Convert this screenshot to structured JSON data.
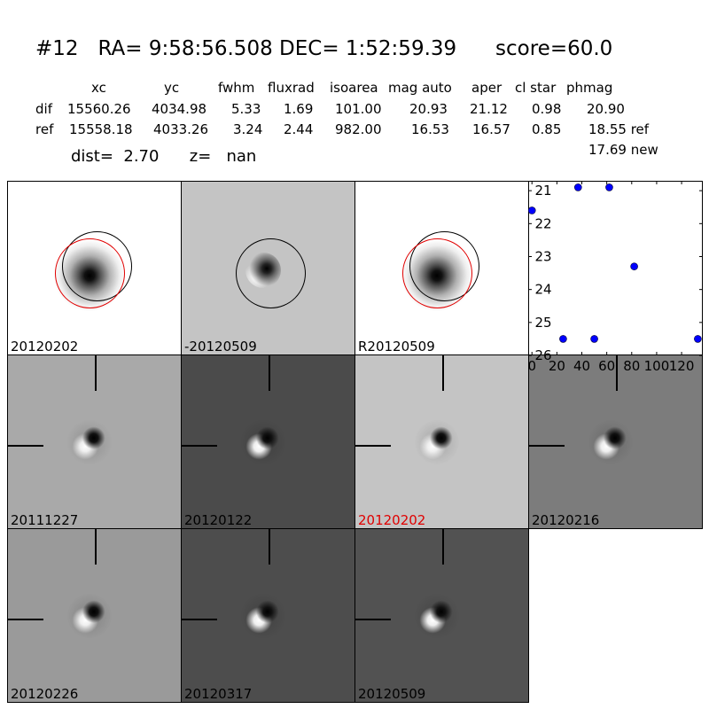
{
  "header": {
    "title": "#12   RA= 9:58:56.508 DEC= 1:52:59.39      score=60.0",
    "columns": [
      "xc",
      "yc",
      "fwhm",
      "fluxrad",
      "isoarea",
      "mag auto",
      "aper",
      "cl star",
      "phmag"
    ],
    "rows": [
      {
        "label": "dif",
        "values": [
          "15560.26",
          "4034.98",
          "5.33",
          "1.69",
          "101.00",
          "20.93",
          "21.12",
          "0.98",
          "20.90"
        ]
      },
      {
        "label": "ref",
        "values": [
          "15558.18",
          "4033.26",
          "3.24",
          "2.44",
          "982.00",
          "16.53",
          "16.57",
          "0.85",
          "18.55 ref"
        ]
      }
    ],
    "extra_phmag": "17.69 new",
    "dist_text": "dist=  2.70      z=   nan"
  },
  "panels": [
    {
      "label": "20120202",
      "type": "ref",
      "bg": "#ffffff",
      "red": false
    },
    {
      "label": "-20120509",
      "type": "diff-circle",
      "bg": "#c4c4c4",
      "red": false
    },
    {
      "label": "R20120509",
      "type": "ref",
      "bg": "#ffffff",
      "red": false
    },
    {
      "label": "20111227",
      "type": "cutout",
      "bg": "#a9a9a9",
      "red": false
    },
    {
      "label": "20120122",
      "type": "cutout",
      "bg": "#4b4b4b",
      "red": false
    },
    {
      "label": "20120202",
      "type": "cutout",
      "bg": "#c4c4c4",
      "red": true
    },
    {
      "label": "20120216",
      "type": "cutout",
      "bg": "#7c7c7c",
      "red": false
    },
    {
      "label": "20120226",
      "type": "cutout",
      "bg": "#9a9a9a",
      "red": false
    },
    {
      "label": "20120317",
      "type": "cutout",
      "bg": "#4d4d4d",
      "red": false
    },
    {
      "label": "20120509",
      "type": "cutout",
      "bg": "#525252",
      "red": false
    }
  ],
  "chart_data": {
    "type": "scatter",
    "x": [
      0,
      25,
      37,
      50,
      62,
      82,
      133
    ],
    "y": [
      21.6,
      25.5,
      20.9,
      25.5,
      20.9,
      23.3,
      25.5
    ],
    "xlim": [
      -3,
      137
    ],
    "ylim": [
      26,
      20.7
    ],
    "xticks": [
      "0",
      "20",
      "40",
      "60",
      "80",
      "100",
      "120"
    ],
    "yticks": [
      "21",
      "22",
      "23",
      "24",
      "25",
      "26"
    ],
    "marker_color": "#0000ff"
  }
}
